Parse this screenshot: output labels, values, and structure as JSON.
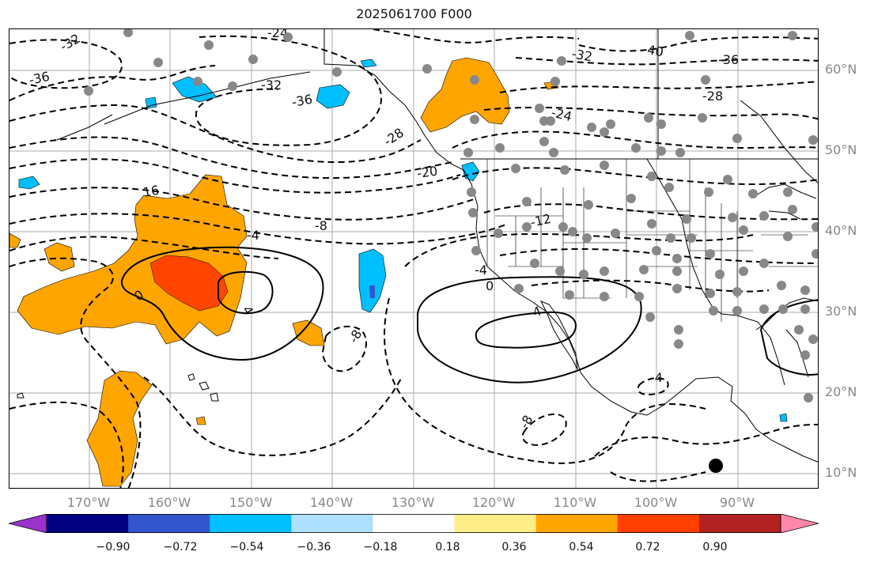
{
  "title": "2025061700 F000",
  "longitude_labels": [
    "170°W",
    "160°W",
    "150°W",
    "140°W",
    "130°W",
    "120°W",
    "110°W",
    "100°W",
    "90°W"
  ],
  "latitude_labels": [
    "60°N",
    "50°N",
    "40°N",
    "30°N",
    "20°N",
    "10°N"
  ],
  "contour_labels": [
    "-32",
    "-24",
    "-36",
    "-32",
    "-36",
    "-28",
    "-20",
    "16",
    "-8",
    "-4",
    "0",
    "4",
    "-8",
    "-4",
    "0",
    "4",
    "-4",
    "-8",
    "-40",
    "-36",
    "-32",
    "-28",
    "-24",
    "-12"
  ],
  "colorbar": {
    "ticks": [
      "−0.90",
      "−0.72",
      "−0.54",
      "−0.36",
      "−0.18",
      "0.18",
      "0.36",
      "0.54",
      "0.72",
      "0.90"
    ],
    "colors": [
      "#9933cc",
      "#000080",
      "#3355cc",
      "#00bfff",
      "#b0e0ff",
      "#ffffff",
      "#ffee88",
      "#ffa500",
      "#ff4000",
      "#b22222",
      "#ff88aa"
    ]
  },
  "field_colors": {
    "positive_medium": "#ffa500",
    "positive_strong": "#ff4500",
    "negative_medium": "#00bfff",
    "negative_strong": "#3355cc",
    "station": "#888888"
  }
}
